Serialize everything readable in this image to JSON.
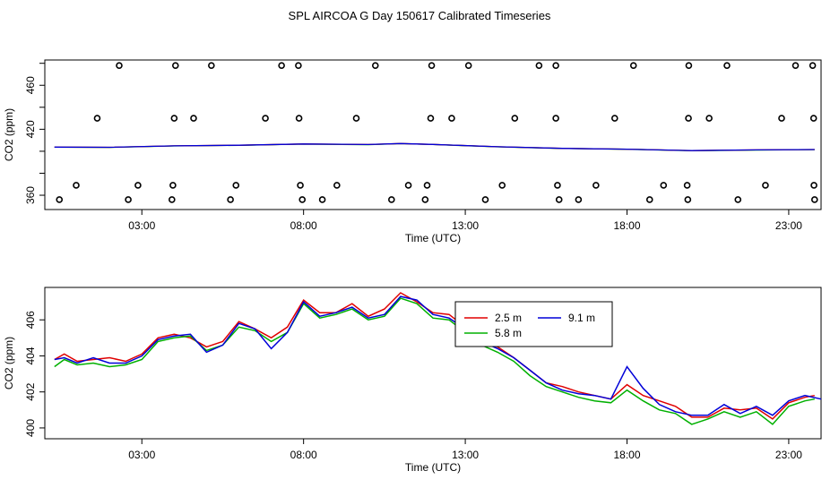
{
  "page_title": "SPL AIRCOA G  Day 150617  Calibrated Timeseries",
  "colors": {
    "red": "#e00000",
    "green": "#00b000",
    "blue": "#0000d8",
    "axis": "#000000"
  },
  "chart_data": [
    {
      "type": "scatter",
      "title": "SPL AIRCOA G  Day 150617  Calibrated Timeseries",
      "xlabel": "Time (UTC)",
      "ylabel": "CO2 (ppm)",
      "xlim": [
        0,
        24
      ],
      "ylim": [
        347,
        483
      ],
      "x_ticks": [
        3,
        8,
        13,
        18,
        23
      ],
      "x_tick_labels": [
        "03:00",
        "08:00",
        "13:00",
        "18:00",
        "23:00"
      ],
      "y_ticks": [
        360,
        420,
        460
      ],
      "y_tick_labels": [
        "360",
        "420",
        "460"
      ],
      "y_minor_ticks": [
        360,
        380,
        400,
        420,
        440,
        460,
        480
      ],
      "markers": {
        "name": "outliers",
        "x": [
          2.3,
          4.04,
          5.15,
          7.32,
          7.84,
          10.22,
          11.96,
          13.1,
          15.28,
          15.8,
          18.2,
          19.91,
          21.09,
          23.21,
          23.74,
          1.62,
          4.0,
          4.6,
          6.82,
          7.86,
          9.63,
          11.93,
          12.58,
          14.53,
          15.8,
          17.62,
          19.9,
          20.54,
          22.78,
          23.77,
          0.97,
          2.88,
          3.96,
          5.91,
          7.9,
          9.03,
          11.24,
          11.82,
          14.14,
          15.85,
          17.04,
          19.13,
          19.86,
          22.28,
          23.78,
          0.45,
          2.58,
          3.93,
          5.74,
          7.96,
          8.58,
          10.72,
          11.76,
          13.62,
          15.9,
          16.5,
          18.7,
          19.88,
          21.43,
          23.8
        ],
        "y": [
          478,
          478,
          478,
          478,
          478,
          478,
          478,
          478,
          478,
          478,
          478,
          478,
          478,
          478,
          478,
          430,
          430,
          430,
          430,
          430,
          430,
          430,
          430,
          430,
          430,
          430,
          430,
          430,
          430,
          430,
          369,
          369,
          369,
          369,
          369,
          369,
          369,
          369,
          369,
          369,
          369,
          369,
          369,
          369,
          369,
          356,
          356,
          356,
          356,
          356,
          356,
          356,
          356,
          356,
          356,
          356,
          356,
          356,
          356,
          356
        ]
      },
      "series": [
        {
          "name": "2.5 m",
          "color": "#e00000",
          "x": [
            0.3,
            2,
            4,
            6,
            8,
            10,
            11,
            12,
            14,
            16,
            18,
            20,
            22,
            23.8
          ],
          "y": [
            403.8,
            403.6,
            404.9,
            405.5,
            406.6,
            406.1,
            407.0,
            406.2,
            404.1,
            402.6,
            401.9,
            400.6,
            401.2,
            401.6
          ]
        },
        {
          "name": "5.8 m",
          "color": "#00b000",
          "x": [
            0.3,
            2,
            4,
            6,
            8,
            10,
            11,
            12,
            14,
            16,
            18,
            20,
            22,
            23.8
          ],
          "y": [
            403.7,
            403.5,
            404.8,
            405.4,
            406.5,
            406.0,
            406.9,
            406.1,
            404.0,
            402.5,
            401.8,
            400.5,
            401.1,
            401.5
          ]
        },
        {
          "name": "9.1 m",
          "color": "#0000d8",
          "x": [
            0.3,
            2,
            4,
            6,
            8,
            10,
            11,
            12,
            14,
            16,
            18,
            20,
            22,
            23.8
          ],
          "y": [
            403.8,
            403.6,
            404.9,
            405.5,
            406.6,
            406.1,
            407.0,
            406.2,
            404.1,
            402.6,
            401.9,
            400.6,
            401.2,
            401.6
          ]
        }
      ]
    },
    {
      "type": "line",
      "title": "",
      "xlabel": "Time (UTC)",
      "ylabel": "CO2 (ppm)",
      "xlim": [
        0,
        24
      ],
      "ylim": [
        399.4,
        407.8
      ],
      "x_ticks": [
        3,
        8,
        13,
        18,
        23
      ],
      "x_tick_labels": [
        "03:00",
        "08:00",
        "13:00",
        "18:00",
        "23:00"
      ],
      "y_ticks": [
        400,
        402,
        404,
        406
      ],
      "y_tick_labels": [
        "400",
        "402",
        "404",
        "406"
      ],
      "legend": [
        "2.5 m",
        "9.1 m",
        "5.8 m"
      ],
      "legend_position": "top-right",
      "series": [
        {
          "name": "2.5 m",
          "color": "#e00000",
          "x": [
            0.3,
            0.6,
            1.0,
            1.5,
            2.0,
            2.5,
            3.0,
            3.5,
            4.0,
            4.5,
            5.0,
            5.5,
            6.0,
            6.5,
            7.0,
            7.5,
            8.0,
            8.5,
            9.0,
            9.5,
            10.0,
            10.5,
            11.0,
            11.5,
            12.0,
            12.5,
            13.0,
            13.5,
            14.0,
            14.5,
            15.0,
            15.5,
            16.0,
            16.5,
            17.0,
            17.5,
            18.0,
            18.5,
            19.0,
            19.5,
            20.0,
            20.5,
            21.0,
            21.5,
            22.0,
            22.5,
            23.0,
            23.5,
            23.8
          ],
          "y": [
            403.8,
            404.1,
            403.7,
            403.8,
            403.9,
            403.7,
            404.1,
            405.0,
            405.2,
            405.0,
            404.5,
            404.8,
            405.9,
            405.5,
            405.0,
            405.6,
            407.1,
            406.4,
            406.4,
            406.9,
            406.2,
            406.6,
            407.5,
            407.0,
            406.4,
            406.3,
            405.6,
            404.8,
            404.5,
            403.9,
            403.2,
            402.5,
            402.3,
            402.0,
            401.8,
            401.6,
            402.4,
            401.8,
            401.5,
            401.2,
            400.6,
            400.6,
            401.1,
            401.0,
            401.1,
            400.5,
            401.4,
            401.7,
            401.8
          ]
        },
        {
          "name": "5.8 m",
          "color": "#00b000",
          "x": [
            0.3,
            0.6,
            1.0,
            1.5,
            2.0,
            2.5,
            3.0,
            3.5,
            4.0,
            4.5,
            5.0,
            5.5,
            6.0,
            6.5,
            7.0,
            7.5,
            8.0,
            8.5,
            9.0,
            9.5,
            10.0,
            10.5,
            11.0,
            11.5,
            12.0,
            12.5,
            13.0,
            13.5,
            14.0,
            14.5,
            15.0,
            15.5,
            16.0,
            16.5,
            17.0,
            17.5,
            18.0,
            18.5,
            19.0,
            19.5,
            20.0,
            20.5,
            21.0,
            21.5,
            22.0,
            22.5,
            23.0,
            23.5,
            23.8
          ],
          "y": [
            403.4,
            403.8,
            403.5,
            403.6,
            403.4,
            403.5,
            403.8,
            404.8,
            405.0,
            405.1,
            404.3,
            404.6,
            405.6,
            405.4,
            404.8,
            405.3,
            406.9,
            406.1,
            406.3,
            406.6,
            406.0,
            406.2,
            407.2,
            406.9,
            406.1,
            406.0,
            405.3,
            404.6,
            404.2,
            403.7,
            402.9,
            402.3,
            402.0,
            401.7,
            401.5,
            401.4,
            402.1,
            401.5,
            401.0,
            400.8,
            400.2,
            400.5,
            400.9,
            400.6,
            400.9,
            400.2,
            401.2,
            401.5,
            401.6
          ]
        },
        {
          "name": "9.1 m",
          "color": "#0000d8",
          "x": [
            0.3,
            0.6,
            1.0,
            1.5,
            2.0,
            2.5,
            3.0,
            3.5,
            4.0,
            4.5,
            5.0,
            5.5,
            6.0,
            6.5,
            7.0,
            7.5,
            8.0,
            8.5,
            9.0,
            9.5,
            10.0,
            10.5,
            11.0,
            11.5,
            12.0,
            12.5,
            13.0,
            13.5,
            14.0,
            14.5,
            15.0,
            15.5,
            16.0,
            16.5,
            17.0,
            17.5,
            18.0,
            18.5,
            19.0,
            19.5,
            20.0,
            20.5,
            21.0,
            21.5,
            22.0,
            22.5,
            23.0,
            23.5,
            24.0
          ],
          "y": [
            403.8,
            403.9,
            403.6,
            403.9,
            403.6,
            403.6,
            404.0,
            404.9,
            405.1,
            405.2,
            404.2,
            404.6,
            405.8,
            405.5,
            404.4,
            405.3,
            407.0,
            406.2,
            406.4,
            406.7,
            406.1,
            406.3,
            407.3,
            407.1,
            406.3,
            406.1,
            405.5,
            404.8,
            404.4,
            403.9,
            403.2,
            402.5,
            402.1,
            401.9,
            401.8,
            401.6,
            403.4,
            402.2,
            401.3,
            400.9,
            400.7,
            400.7,
            401.3,
            400.8,
            401.2,
            400.7,
            401.5,
            401.8,
            401.6
          ]
        }
      ]
    }
  ]
}
